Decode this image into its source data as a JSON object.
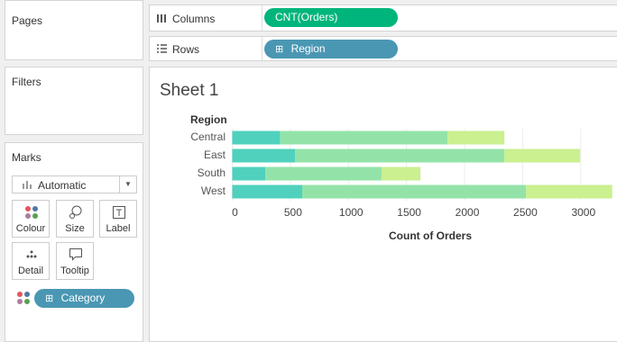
{
  "pages": {
    "title": "Pages"
  },
  "filters": {
    "title": "Filters"
  },
  "marks": {
    "title": "Marks",
    "type": "Automatic",
    "buttons": [
      "Colour",
      "Size",
      "Label",
      "Detail",
      "Tooltip"
    ],
    "pill": "Category"
  },
  "shelves": {
    "columns": {
      "label": "Columns",
      "pill": "CNT(Orders)"
    },
    "rows": {
      "label": "Rows",
      "pill": "Region"
    }
  },
  "chart_data": {
    "type": "bar",
    "orientation": "horizontal",
    "stacked": true,
    "title": "Sheet 1",
    "category_label": "Region",
    "categories": [
      "Central",
      "East",
      "South",
      "West"
    ],
    "series": [
      {
        "color": "#4fd1bd",
        "values": [
          411,
          540,
          284,
          602
        ]
      },
      {
        "color": "#93e3a9",
        "values": [
          1442,
          1803,
          1002,
          1927
        ]
      },
      {
        "color": "#caf08f",
        "values": [
          490,
          652,
          334,
          742
        ]
      }
    ],
    "xlim": [
      0,
      3320
    ],
    "xticks": [
      0,
      500,
      1000,
      1500,
      2000,
      2500,
      3000
    ],
    "x_label": "Count of Orders",
    "grid": true
  }
}
